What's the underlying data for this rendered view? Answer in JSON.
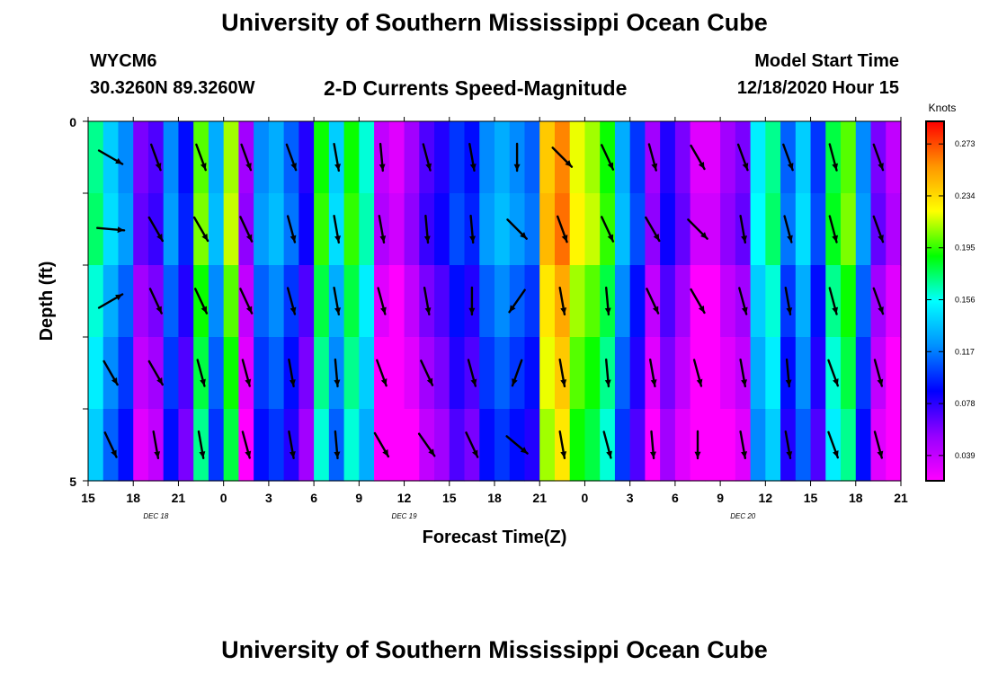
{
  "header": {
    "title": "University of Southern Mississippi Ocean Cube",
    "station_id": "WYCM6",
    "location": "30.3260N 89.3260W",
    "subtitle": "2-D Currents Speed-Magnitude",
    "model_start_label": "Model Start Time",
    "model_start_value": "12/18/2020 Hour 15",
    "footer_title": "University of Southern Mississippi Ocean Cube"
  },
  "chart_data": {
    "type": "heatmap",
    "title": "2-D Currents Speed-Magnitude",
    "xlabel": "Forecast Time(Z)",
    "ylabel": "Depth (ft)",
    "ylim": [
      0,
      5
    ],
    "y_ticks": [
      "0",
      "5"
    ],
    "x_tick_labels": [
      "15",
      "18",
      "21",
      "0",
      "3",
      "6",
      "9",
      "12",
      "15",
      "18",
      "21",
      "0",
      "3",
      "6",
      "9",
      "12",
      "15",
      "18",
      "21"
    ],
    "date_labels": [
      {
        "label": "DEC 18",
        "at_tick": 1.5
      },
      {
        "label": "DEC 19",
        "at_tick": 7
      },
      {
        "label": "DEC 20",
        "at_tick": 14.5
      }
    ],
    "hours": 54,
    "depth_layers": 5,
    "colorbar": {
      "label": "Knots",
      "range": [
        0.02,
        0.29
      ],
      "ticks": [
        0.273,
        0.234,
        0.195,
        0.156,
        0.117,
        0.078,
        0.039
      ],
      "colors": [
        "#ff00ff",
        "#9600ff",
        "#0000ff",
        "#0090ff",
        "#00ffff",
        "#00ff00",
        "#ffff00",
        "#ff9600",
        "#ff0000"
      ]
    },
    "speed_by_hour": [
      0.17,
      0.14,
      0.12,
      0.06,
      0.07,
      0.12,
      0.09,
      0.2,
      0.13,
      0.21,
      0.05,
      0.12,
      0.13,
      0.11,
      0.08,
      0.19,
      0.14,
      0.19,
      0.16,
      0.04,
      0.03,
      0.05,
      0.07,
      0.08,
      0.1,
      0.09,
      0.12,
      0.13,
      0.12,
      0.11,
      0.24,
      0.26,
      0.22,
      0.21,
      0.19,
      0.13,
      0.1,
      0.05,
      0.08,
      0.06,
      0.03,
      0.03,
      0.05,
      0.06,
      0.15,
      0.17,
      0.11,
      0.14,
      0.1,
      0.18,
      0.2,
      0.12,
      0.06,
      0.04
    ],
    "depth_offsets": [
      0.0,
      0.005,
      -0.01,
      -0.02,
      -0.03
    ],
    "arrow_times_hours": [
      1.5,
      4.5,
      7.5,
      10.5,
      13.5,
      16.5,
      19.5,
      22.5,
      25.5,
      28.5,
      31.5,
      34.5,
      37.5,
      40.5,
      43.5,
      46.5,
      49.5,
      52.5
    ],
    "arrow_directions_deg": [
      [
        120,
        160,
        160,
        160,
        160,
        170,
        175,
        165,
        170,
        180,
        135,
        155,
        165,
        150,
        160,
        160,
        165,
        160
      ],
      [
        95,
        150,
        150,
        155,
        165,
        170,
        170,
        175,
        175,
        135,
        160,
        155,
        150,
        135,
        170,
        165,
        165,
        160
      ],
      [
        60,
        155,
        155,
        155,
        165,
        170,
        165,
        170,
        180,
        215,
        170,
        175,
        155,
        150,
        165,
        170,
        165,
        160
      ],
      [
        150,
        150,
        165,
        165,
        170,
        175,
        160,
        155,
        165,
        200,
        170,
        175,
        170,
        165,
        170,
        175,
        160,
        165
      ],
      [
        155,
        170,
        170,
        165,
        170,
        175,
        150,
        145,
        155,
        130,
        170,
        165,
        175,
        180,
        170,
        170,
        160,
        165
      ]
    ],
    "grid": false,
    "legend": "colorbar-right"
  }
}
